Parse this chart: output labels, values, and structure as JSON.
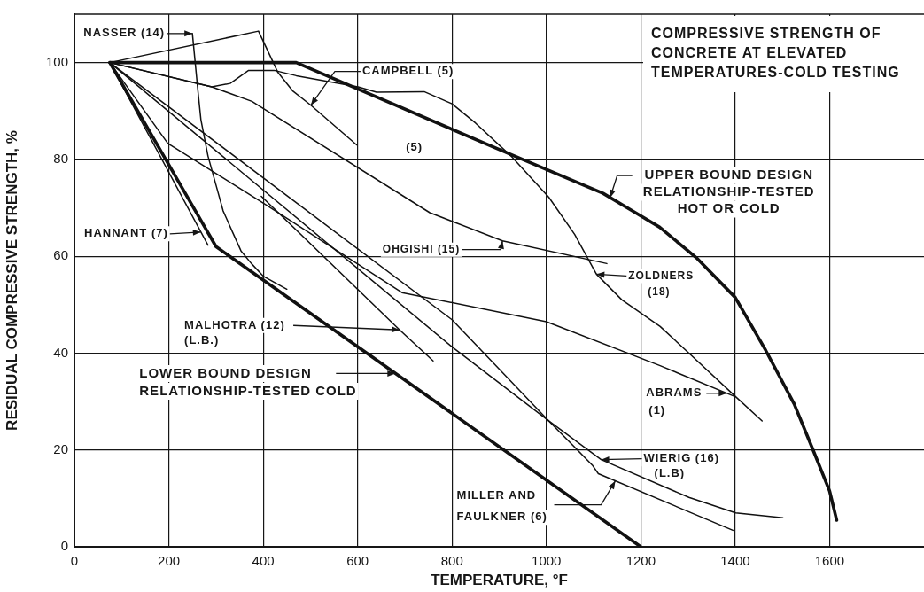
{
  "chart_data": {
    "type": "line",
    "title": "COMPRESSIVE STRENGTH OF\nCONCRETE AT ELEVATED\nTEMPERATURES-COLD TESTING",
    "xlabel": "TEMPERATURE, °F",
    "ylabel": "RESIDUAL COMPRESSIVE STRENGTH, %",
    "xlim": [
      0,
      1800
    ],
    "xticks": [
      0,
      200,
      400,
      600,
      800,
      1000,
      1200,
      1400,
      1600
    ],
    "ylim": [
      0,
      110
    ],
    "yticks": [
      0,
      20,
      40,
      60,
      80,
      100
    ],
    "grid": true,
    "series": [
      {
        "color": "#111111",
        "x": [
          75,
          470,
          925,
          1120,
          1180,
          1240,
          1320,
          1400,
          1465,
          1525,
          1565,
          1600,
          1615
        ],
        "values": [
          100,
          100,
          81,
          73,
          69.5,
          66,
          59.5,
          51.5,
          40.5,
          29.5,
          20,
          11.5,
          5.5
        ]
      },
      {
        "color": "#111111",
        "x": [
          75,
          300,
          1200
        ],
        "values": [
          100,
          62,
          0
        ]
      },
      {
        "color": "#111111",
        "x": [
          75,
          283
        ],
        "values": [
          100,
          62.3
        ]
      },
      {
        "color": "#111111",
        "x": [
          250,
          260,
          268,
          283,
          300,
          315,
          335,
          353,
          375,
          400,
          450
        ],
        "values": [
          106,
          95.8,
          88.2,
          80.7,
          74.7,
          69.4,
          65,
          61.1,
          58.5,
          55.9,
          53.2
        ]
      },
      {
        "color": "#111111",
        "x": [
          75,
          390,
          431,
          462,
          501,
          598
        ],
        "values": [
          100,
          106.5,
          98,
          94.2,
          91.2,
          83
        ]
      },
      {
        "color": "#111111",
        "x": [
          75,
          291,
          330,
          369,
          423,
          470,
          601,
          640,
          741,
          800,
          850,
          925,
          1005,
          1060,
          1106,
          1160,
          1241,
          1302,
          1401,
          1457
        ],
        "values": [
          100,
          95,
          95.7,
          98.4,
          98.4,
          97.3,
          95,
          93.9,
          94,
          91.5,
          87.5,
          80.7,
          72.2,
          64.5,
          56.3,
          51,
          45.5,
          40,
          31,
          26
        ]
      },
      {
        "color": "#111111",
        "x": [
          75,
          291,
          376,
          753,
          907,
          1128
        ],
        "values": [
          100,
          95,
          92,
          69,
          63.2,
          58.5
        ]
      },
      {
        "color": "#111111",
        "x": [
          75,
          198,
          400,
          694,
          1000,
          1241,
          1400
        ],
        "values": [
          100,
          83.3,
          71,
          52.5,
          46.5,
          37.4,
          31
        ]
      },
      {
        "color": "#111111",
        "x": [
          75,
          800,
          1005,
          1116,
          1302,
          1401,
          1501
        ],
        "values": [
          100,
          46.9,
          26,
          18,
          10.2,
          7,
          6
        ]
      },
      {
        "color": "#111111",
        "x": [
          75,
          800,
          1005,
          1097,
          1110,
          1395
        ],
        "values": [
          100,
          41.3,
          26,
          16.9,
          15.1,
          3.4
        ]
      },
      {
        "color": "#111111",
        "x": [
          396,
          689,
          760
        ],
        "values": [
          72.4,
          44.8,
          38.4
        ]
      }
    ],
    "annotations": [
      {
        "text": "NASSER (14)",
        "x": 250,
        "y": 106
      },
      {
        "text": "HANNANT (7)",
        "x": 268,
        "y": 65
      },
      {
        "text": "CAMPBELL (5)",
        "x": 501,
        "y": 91.2
      },
      {
        "text": "(5)",
        "x": 720,
        "y": 82.5
      },
      {
        "text": "OHGISHI (15)",
        "x": 907,
        "y": 63.2
      },
      {
        "text": "UPPER BOUND DESIGN\nRELATIONSHIP-TESTED\nHOT OR COLD",
        "x": 1135,
        "y": 72.1
      },
      {
        "text": "ZOLDNERS\n(18)",
        "x": 1106,
        "y": 56.3
      },
      {
        "text": "MALHOTRA (12)\n(L.B.)",
        "x": 689,
        "y": 44.8
      },
      {
        "text": "LOWER BOUND DESIGN\nRELATIONSHIP-TESTED COLD",
        "x": 680,
        "y": 35.8
      },
      {
        "text": "ABRAMS\n(1)",
        "x": 1382,
        "y": 31.7
      },
      "WIERIG (16)\n(L.B)",
      {
        "text": "MILLER AND\nFAULKNER (6)",
        "x": 1146,
        "y": 13.6
      }
    ]
  }
}
